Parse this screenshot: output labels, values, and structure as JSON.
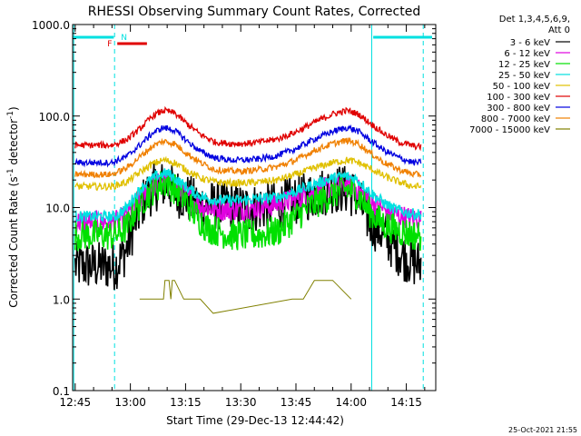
{
  "chart_data": {
    "type": "line",
    "title": "RHESSI Observing Summary Count Rates, Corrected",
    "xlabel": "Start Time (29-Dec-13 12:44:42)",
    "ylabel_main": "Corrected Count Rate (s",
    "ylabel_sup1": "-1",
    "ylabel_mid": " detector",
    "ylabel_sup2": "-1",
    "ylabel_end": ")",
    "y_scale": "log",
    "ylim": [
      0.1,
      1000
    ],
    "xlim_minutes": [
      -0.7,
      98
    ],
    "yticks": [
      {
        "value": 1000,
        "label": "1000.0"
      },
      {
        "value": 100,
        "label": "100.0"
      },
      {
        "value": 10,
        "label": "10.0"
      },
      {
        "value": 1,
        "label": "1.0"
      },
      {
        "value": 0.1,
        "label": "0.1"
      }
    ],
    "xticks": [
      {
        "minute": 0,
        "label": "12:45"
      },
      {
        "minute": 15,
        "label": "13:00"
      },
      {
        "minute": 30,
        "label": "13:15"
      },
      {
        "minute": 45,
        "label": "13:30"
      },
      {
        "minute": 60,
        "label": "13:45"
      },
      {
        "minute": 75,
        "label": "14:00"
      },
      {
        "minute": 90,
        "label": "14:15"
      }
    ],
    "legend_header": [
      "Det 1,3,4,5,6,9,",
      "Att 0"
    ],
    "legend_position": "right",
    "series": [
      {
        "name": "3 - 6 keV",
        "color": "#000000",
        "x": [
          0,
          11,
          14,
          16,
          19,
          22,
          25,
          27,
          30,
          33,
          36,
          39,
          42,
          45,
          50,
          55,
          60,
          65,
          70,
          73,
          76,
          78,
          80,
          83,
          86,
          89,
          92,
          94
        ],
        "y": [
          2.3,
          2.3,
          3.5,
          6.5,
          13,
          17,
          18,
          15,
          13,
          11,
          10.5,
          10.5,
          10.5,
          9.8,
          10,
          10.5,
          12,
          14,
          16,
          16,
          14,
          10,
          7,
          5.5,
          4,
          3,
          2.5,
          2.4
        ]
      },
      {
        "name": "6 - 12 keV",
        "color": "#e000e0",
        "x": [
          0,
          11,
          14,
          16,
          19,
          22,
          25,
          27,
          30,
          33,
          36,
          39,
          42,
          45,
          50,
          55,
          60,
          65,
          70,
          73,
          76,
          78,
          80,
          83,
          86,
          89,
          92,
          94
        ],
        "y": [
          7,
          7,
          8,
          10,
          14,
          18,
          20,
          17,
          14,
          11,
          10,
          9.5,
          9.5,
          9.5,
          10,
          11,
          12.5,
          15,
          17,
          18,
          17,
          14,
          12,
          10,
          8.5,
          8,
          7.5,
          7.5
        ]
      },
      {
        "name": "12 - 25 keV",
        "color": "#00e000",
        "x": [
          0,
          11,
          14,
          16,
          19,
          22,
          25,
          27,
          30,
          33,
          36,
          39,
          42,
          45,
          50,
          55,
          60,
          65,
          70,
          73,
          76,
          78,
          80,
          83,
          86,
          89,
          92,
          94
        ],
        "y": [
          5,
          5,
          6,
          9,
          13,
          17,
          19,
          16,
          12,
          8,
          6,
          5.5,
          5,
          5,
          5,
          5.5,
          8,
          11,
          14,
          16,
          15,
          12,
          9,
          7,
          6,
          5.5,
          5,
          5
        ]
      },
      {
        "name": "25 - 50 keV",
        "color": "#00e0e0",
        "x": [
          0,
          11,
          14,
          16,
          19,
          22,
          25,
          27,
          30,
          33,
          36,
          39,
          42,
          45,
          50,
          55,
          60,
          65,
          70,
          73,
          76,
          78,
          80,
          83,
          86,
          89,
          92,
          94
        ],
        "y": [
          8,
          8,
          10,
          13,
          18,
          22,
          24,
          21,
          17,
          14,
          12.5,
          12,
          12,
          12,
          12.5,
          13,
          15,
          18,
          21,
          22,
          21,
          18,
          15,
          12,
          10,
          9,
          8.5,
          8.5
        ]
      },
      {
        "name": "50 - 100 keV",
        "color": "#e0c000",
        "x": [
          0,
          10,
          14,
          18,
          21,
          24,
          27,
          30,
          34,
          38,
          42,
          46,
          50,
          55,
          60,
          65,
          70,
          74,
          77,
          80,
          84,
          88,
          92,
          94
        ],
        "y": [
          17,
          17,
          19,
          25,
          30,
          33,
          31,
          26,
          21,
          19,
          18.5,
          18.5,
          19,
          20,
          23,
          27,
          31,
          33,
          31,
          27,
          22,
          19,
          17,
          17
        ]
      },
      {
        "name": "100 - 300 keV",
        "color": "#e00000",
        "x": [
          0,
          10,
          14,
          18,
          21,
          24,
          27,
          30,
          34,
          38,
          42,
          46,
          50,
          55,
          60,
          65,
          70,
          74,
          77,
          80,
          84,
          88,
          92,
          94
        ],
        "y": [
          48,
          48,
          55,
          75,
          100,
          115,
          108,
          85,
          63,
          52,
          50,
          50,
          52,
          56,
          67,
          85,
          105,
          115,
          105,
          85,
          64,
          52,
          47,
          46
        ]
      },
      {
        "name": "300 - 800 keV",
        "color": "#0000e0",
        "x": [
          0,
          10,
          14,
          18,
          21,
          24,
          27,
          30,
          34,
          38,
          42,
          46,
          50,
          55,
          60,
          65,
          70,
          74,
          77,
          80,
          84,
          88,
          92,
          94
        ],
        "y": [
          31,
          31,
          36,
          50,
          65,
          75,
          70,
          55,
          41,
          35,
          33,
          33,
          34,
          37,
          44,
          56,
          68,
          75,
          68,
          55,
          42,
          35,
          31,
          31
        ]
      },
      {
        "name": "800 - 7000 keV",
        "color": "#f08000",
        "x": [
          0,
          10,
          14,
          18,
          21,
          24,
          27,
          30,
          34,
          38,
          42,
          46,
          50,
          55,
          60,
          65,
          70,
          74,
          77,
          80,
          84,
          88,
          92,
          94
        ],
        "y": [
          23,
          23,
          27,
          37,
          47,
          53,
          50,
          40,
          31,
          26,
          25,
          25,
          26,
          28,
          33,
          42,
          50,
          54,
          50,
          40,
          31,
          26,
          23,
          23
        ]
      },
      {
        "name": "7000 - 15000 keV",
        "color": "#808000",
        "x": [
          17.5,
          24,
          24.4,
          25.5,
          26,
          26.4,
          27,
          29.5,
          34,
          37.5,
          59,
          62,
          65,
          70,
          75
        ],
        "y": [
          1,
          1,
          1.6,
          1.6,
          1,
          1.6,
          1.6,
          1,
          1,
          0.7,
          1,
          1,
          1.6,
          1.6,
          1
        ]
      }
    ],
    "annotations": [
      {
        "text": "N",
        "color": "#00e0e0"
      },
      {
        "text": "F",
        "color": "#e00000"
      }
    ],
    "night_bars_minutes": [
      [
        -0.7,
        10.5
      ],
      [
        81,
        97
      ]
    ],
    "night_lines_minutes": [
      -0.4,
      10.7,
      80.6,
      94.6
    ],
    "flare_bar_minutes": [
      10.7,
      19.5
    ]
  },
  "footer": {
    "timestamp": "25-Oct-2021 21:55"
  }
}
